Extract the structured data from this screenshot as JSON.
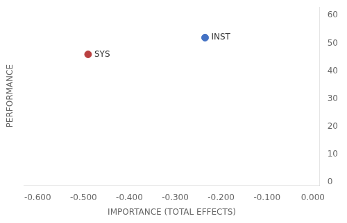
{
  "chart_data": {
    "type": "scatter",
    "xlabel": "IMPORTANCE (TOTAL EFFECTS)",
    "ylabel": "PERFORMANCE",
    "x": [
      -0.235,
      -0.49
    ],
    "values": [
      52,
      46
    ],
    "colors": [
      "#4472C4",
      "#B94040"
    ],
    "annotations": [
      {
        "text": "INST",
        "x": -0.235,
        "y": 52
      },
      {
        "text": "SYS",
        "x": -0.49,
        "y": 46
      }
    ],
    "xlim": [
      -0.63,
      0.015
    ],
    "ylim": [
      -1,
      63
    ],
    "xticks": [
      {
        "value": -0.6,
        "label": "-0.600"
      },
      {
        "value": -0.5,
        "label": "-0.500"
      },
      {
        "value": -0.4,
        "label": "-0.400"
      },
      {
        "value": -0.3,
        "label": "-0.300"
      },
      {
        "value": -0.2,
        "label": "-0.200"
      },
      {
        "value": -0.1,
        "label": "-0.100"
      },
      {
        "value": 0,
        "label": "0.000"
      }
    ],
    "yticks": [
      0,
      10,
      20,
      30,
      40,
      50,
      60
    ],
    "grid": false
  }
}
